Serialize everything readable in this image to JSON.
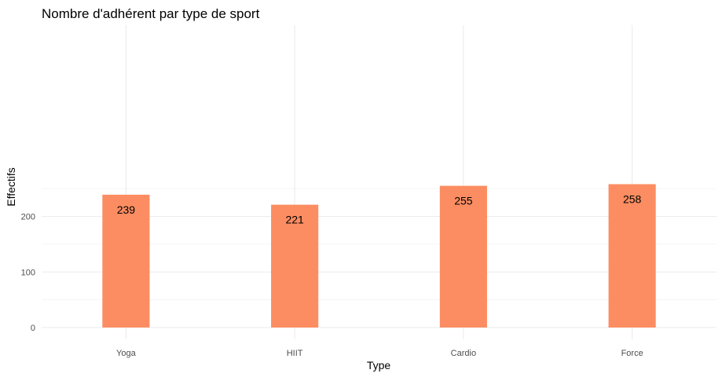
{
  "chart_data": {
    "type": "bar",
    "title": "Nombre d'adhérent par type de sport",
    "xlabel": "Type",
    "ylabel": "Effectifs",
    "categories": [
      "Yoga",
      "HIIT",
      "Cardio",
      "Force"
    ],
    "values": [
      239,
      221,
      255,
      258
    ],
    "data_labels": [
      "239",
      "221",
      "255",
      "258"
    ],
    "yticks": [
      0,
      100,
      200
    ],
    "ytick_labels": [
      "0",
      "100",
      "200"
    ],
    "ylim": [
      0,
      270
    ],
    "grid": true,
    "legend": "none",
    "bar_color": "#FC8D62",
    "grid_color": "#EBEBEB"
  }
}
